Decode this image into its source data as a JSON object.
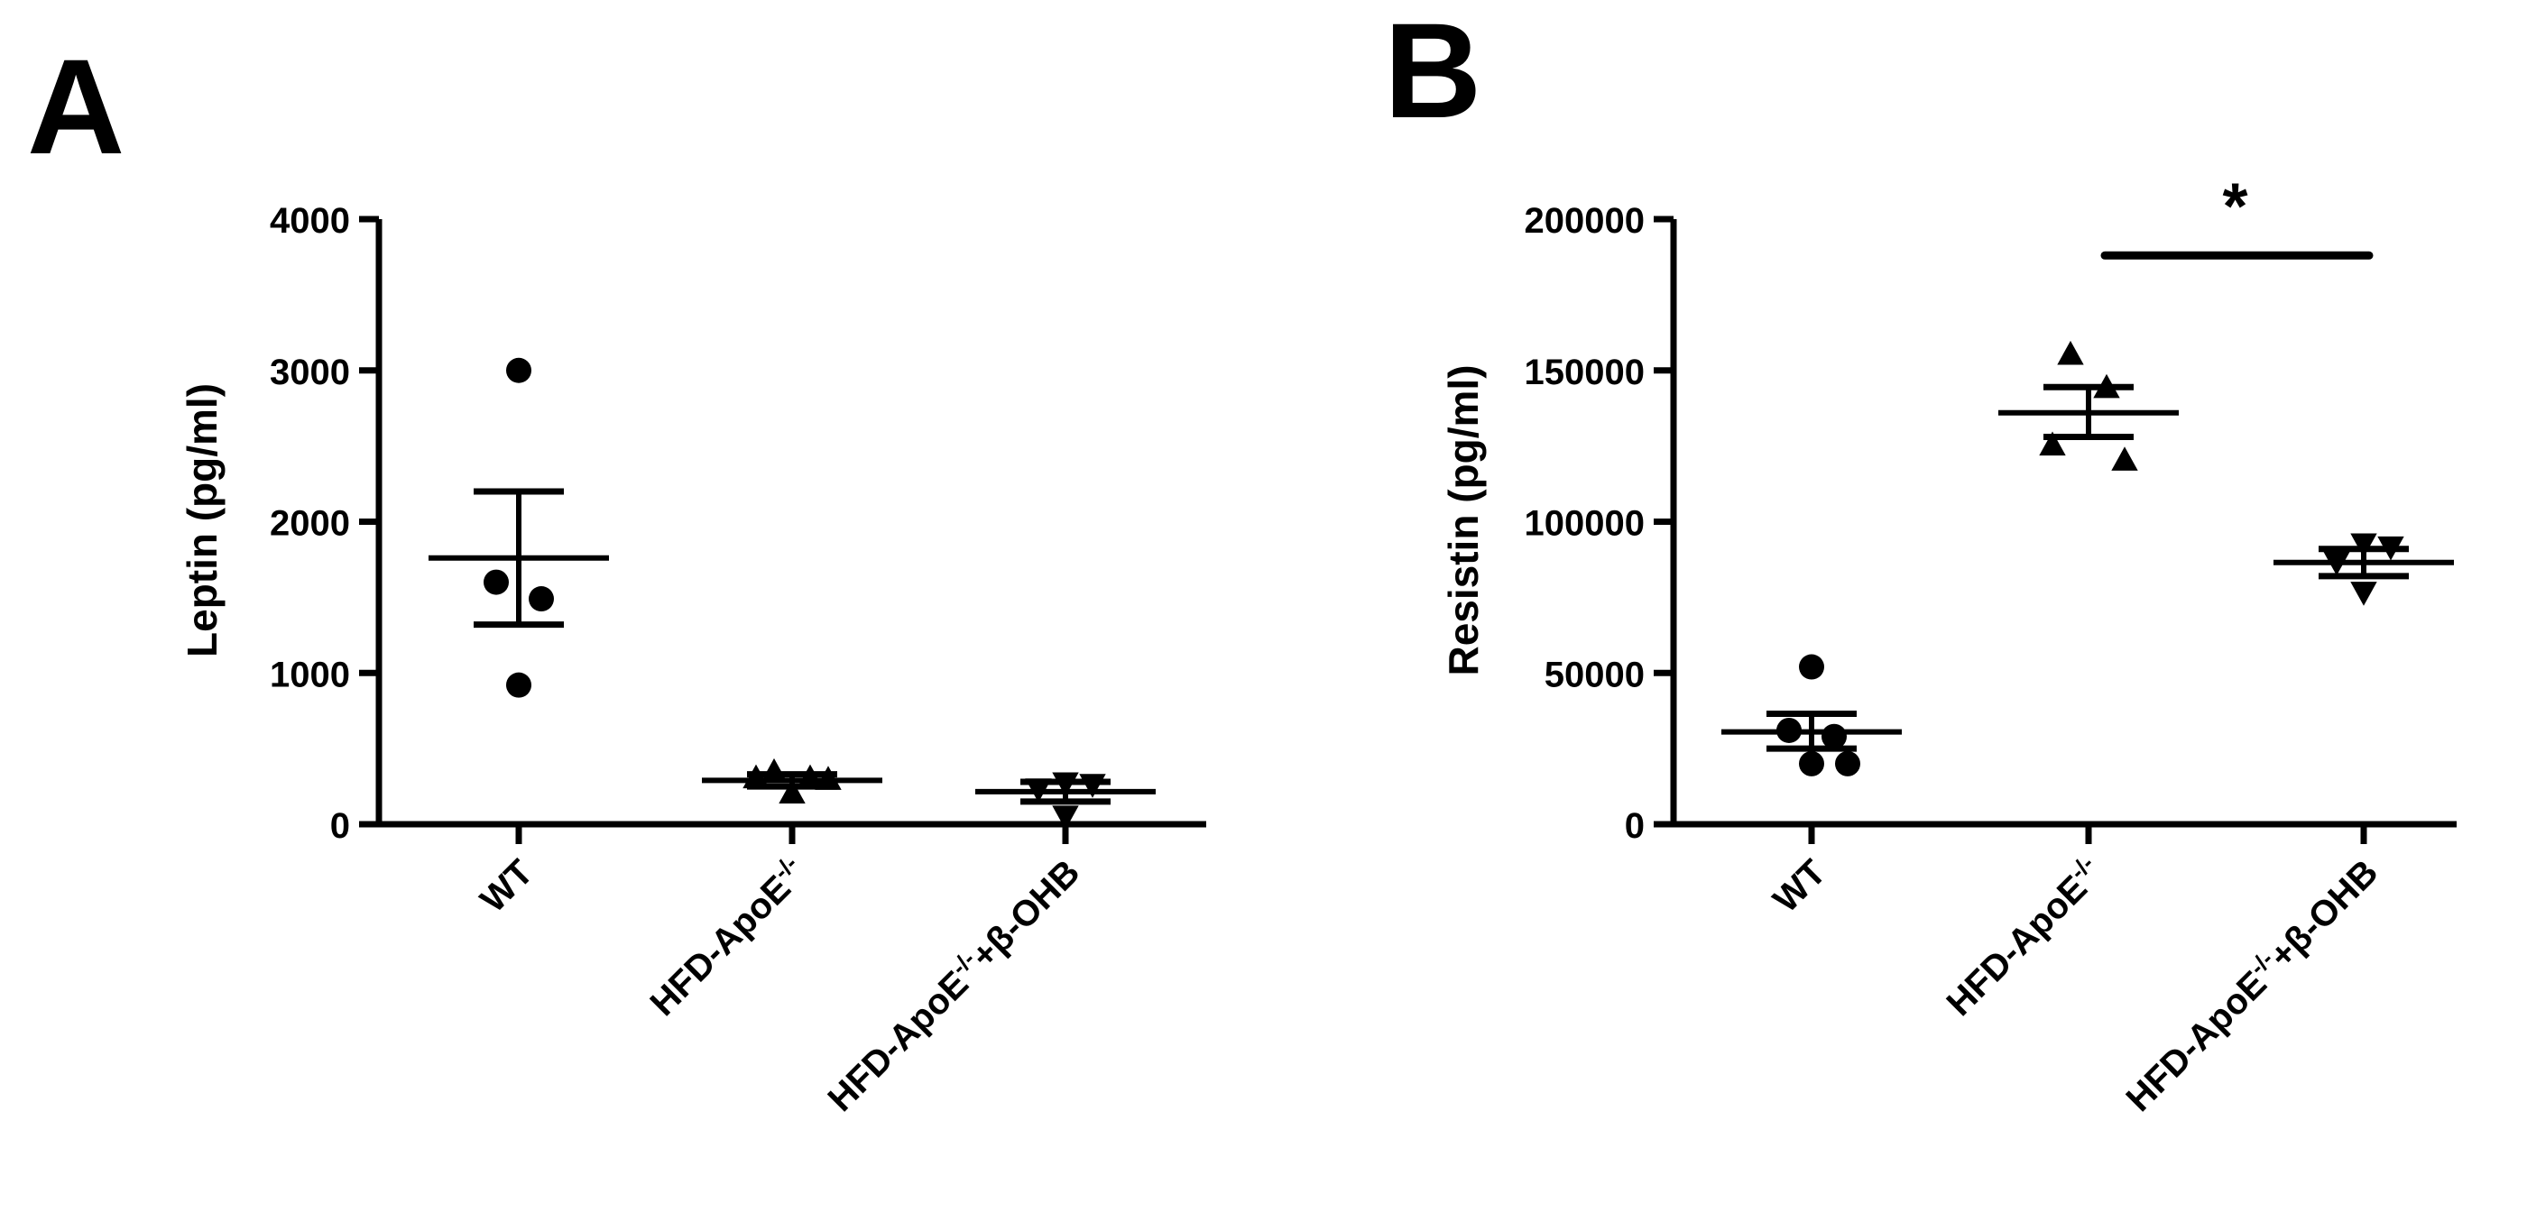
{
  "chart_data": [
    {
      "type": "scatter",
      "panel_label": "A",
      "ylabel": "Leptin (pg/ml)",
      "ylim": [
        0,
        4000
      ],
      "yticks": [
        0,
        1000,
        2000,
        3000,
        4000
      ],
      "ytick_labels": [
        "0",
        "1000",
        "2000",
        "3000",
        "4000"
      ],
      "categories": [
        {
          "main": "WT",
          "sup": "",
          "tail": ""
        },
        {
          "main": "HFD-ApoE",
          "sup": "-/-",
          "tail": ""
        },
        {
          "main": "HFD-ApoE",
          "sup": "-/-",
          "tail": "+β-OHB"
        }
      ],
      "groups": [
        {
          "marker": "circle",
          "mean": 1760,
          "sem_low": 1320,
          "sem_high": 2200,
          "points": [
            3000,
            1600,
            1490,
            920
          ]
        },
        {
          "marker": "triangle-up",
          "mean": 290,
          "sem_low": 250,
          "sem_high": 330,
          "points": [
            340,
            300,
            300,
            290,
            200
          ]
        },
        {
          "marker": "triangle-down",
          "mean": 215,
          "sem_low": 150,
          "sem_high": 280,
          "points": [
            280,
            270,
            240,
            60
          ]
        }
      ],
      "significance": []
    },
    {
      "type": "scatter",
      "panel_label": "B",
      "ylabel": "Resistin (pg/ml)",
      "ylim": [
        0,
        200000
      ],
      "yticks": [
        0,
        50000,
        100000,
        150000,
        200000
      ],
      "ytick_labels": [
        "0",
        "50000",
        "100000",
        "150000",
        "200000"
      ],
      "categories": [
        {
          "main": "WT",
          "sup": "",
          "tail": ""
        },
        {
          "main": "HFD-ApoE",
          "sup": "-/-",
          "tail": ""
        },
        {
          "main": "HFD-ApoE",
          "sup": "-/-",
          "tail": "+β-OHB"
        }
      ],
      "groups": [
        {
          "marker": "circle",
          "mean": 30500,
          "sem_low": 25000,
          "sem_high": 36500,
          "points": [
            52000,
            31000,
            29000,
            20000,
            20000
          ]
        },
        {
          "marker": "triangle-up",
          "mean": 136000,
          "sem_low": 128000,
          "sem_high": 144500,
          "points": [
            155000,
            144000,
            125000,
            120000
          ]
        },
        {
          "marker": "triangle-down",
          "mean": 86500,
          "sem_low": 82000,
          "sem_high": 91000,
          "points": [
            93000,
            92000,
            87000,
            77000
          ]
        }
      ],
      "significance": [
        {
          "from": 1,
          "to": 2,
          "label": "*",
          "y": 188000
        }
      ]
    }
  ]
}
